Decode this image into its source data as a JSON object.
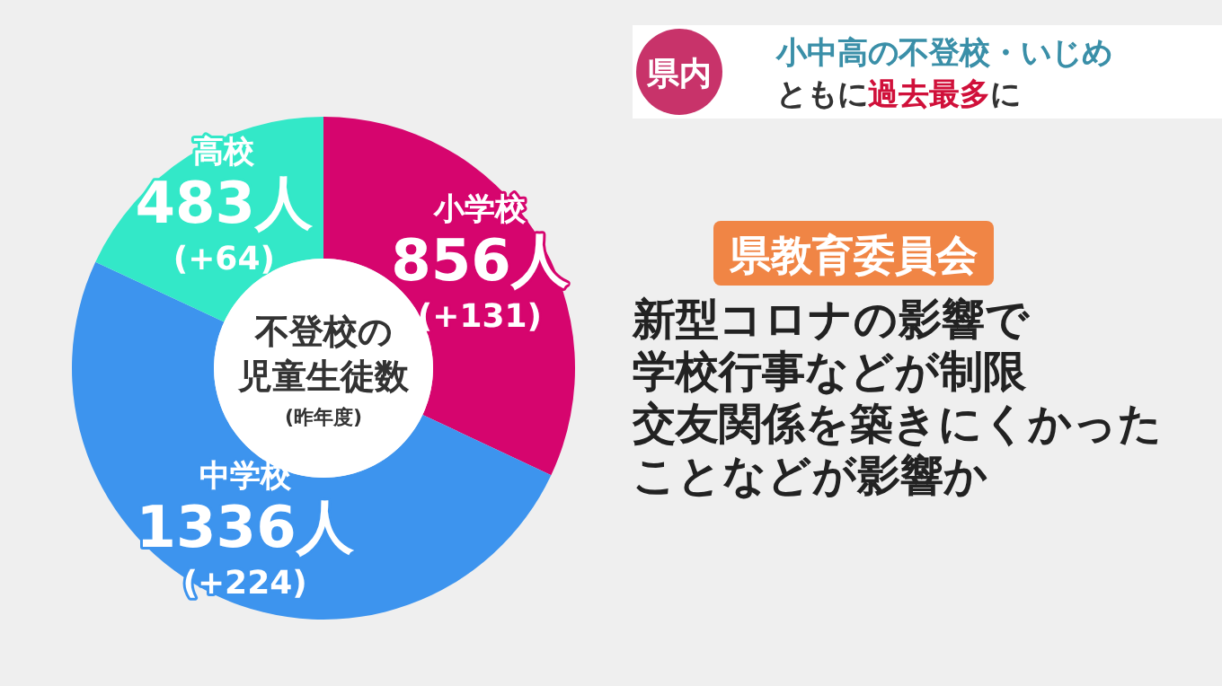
{
  "chart_data": {
    "type": "donut",
    "title": "不登校の児童生徒数",
    "subtitle": "(昨年度)",
    "categories": [
      "小学校",
      "中学校",
      "高校"
    ],
    "values": [
      856,
      1336,
      483
    ],
    "value_labels": [
      "856人",
      "1336人",
      "483人"
    ],
    "colors": [
      "#d6056e",
      "#3d94ee",
      "#33e8c8"
    ],
    "annotations": [
      "(+131)",
      "(+224)",
      "(+64)",
      "県内",
      "小中高の不登校・いじめ",
      "ともに**過去最多**に",
      "県教育委員会",
      "新型コロナの影響で",
      "学校行事などが制限",
      "交友関係を築きにくかった",
      "ことなどが影響か"
    ]
  }
}
